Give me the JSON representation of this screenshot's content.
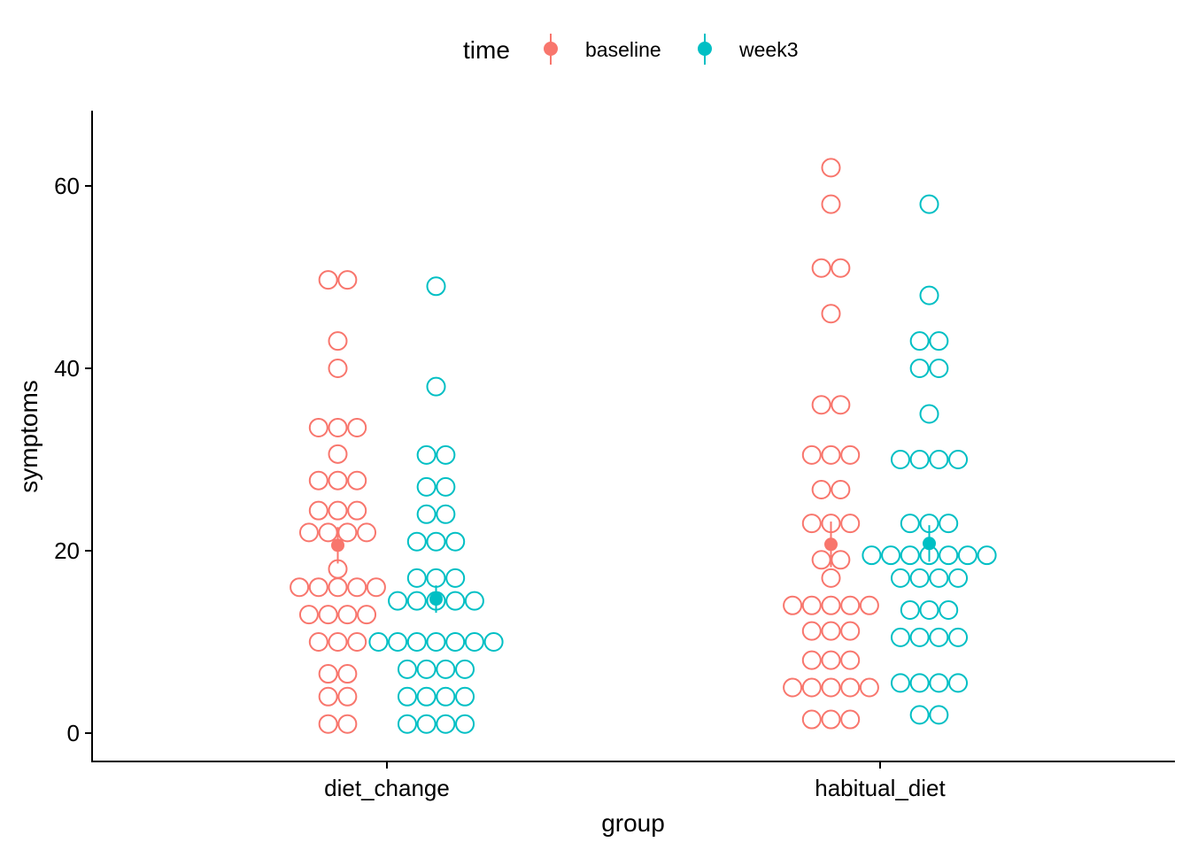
{
  "chart_data": {
    "type": "scatter",
    "subtype": "dotplot-with-mean-and-error",
    "xlabel": "group",
    "ylabel": "symptoms",
    "categories": [
      "diet_change",
      "habitual_diet"
    ],
    "yticks": [
      0,
      20,
      40,
      60
    ],
    "ylim": [
      -3,
      68
    ],
    "grid": false,
    "legend": {
      "title": "time",
      "position": "top"
    },
    "series": [
      {
        "name": "baseline",
        "color": "#F8766D",
        "groups": [
          {
            "category": "diet_change",
            "mean": 20.6,
            "err_low": 18.6,
            "err_high": 22.6,
            "bins": [
              {
                "y": 49.7,
                "count": 2
              },
              {
                "y": 43,
                "count": 1
              },
              {
                "y": 40,
                "count": 1
              },
              {
                "y": 33.5,
                "count": 3
              },
              {
                "y": 30.6,
                "count": 1
              },
              {
                "y": 27.7,
                "count": 3
              },
              {
                "y": 24.4,
                "count": 3
              },
              {
                "y": 22,
                "count": 4
              },
              {
                "y": 18,
                "count": 1
              },
              {
                "y": 16,
                "count": 5
              },
              {
                "y": 13,
                "count": 4
              },
              {
                "y": 10,
                "count": 3
              },
              {
                "y": 6.5,
                "count": 2
              },
              {
                "y": 4,
                "count": 2
              },
              {
                "y": 1,
                "count": 2
              }
            ]
          },
          {
            "category": "habitual_diet",
            "mean": 20.7,
            "err_low": 18.2,
            "err_high": 23.2,
            "bins": [
              {
                "y": 62,
                "count": 1
              },
              {
                "y": 58,
                "count": 1
              },
              {
                "y": 51,
                "count": 2
              },
              {
                "y": 46,
                "count": 1
              },
              {
                "y": 36,
                "count": 2
              },
              {
                "y": 30.5,
                "count": 3
              },
              {
                "y": 26.7,
                "count": 2
              },
              {
                "y": 23,
                "count": 3
              },
              {
                "y": 19,
                "count": 2
              },
              {
                "y": 17,
                "count": 1
              },
              {
                "y": 14,
                "count": 5
              },
              {
                "y": 11.2,
                "count": 3
              },
              {
                "y": 8,
                "count": 3
              },
              {
                "y": 5,
                "count": 5
              },
              {
                "y": 1.5,
                "count": 3
              }
            ]
          }
        ]
      },
      {
        "name": "week3",
        "color": "#00BFC4",
        "groups": [
          {
            "category": "diet_change",
            "mean": 14.7,
            "err_low": 13.2,
            "err_high": 16.2,
            "bins": [
              {
                "y": 49,
                "count": 1
              },
              {
                "y": 38,
                "count": 1
              },
              {
                "y": 30.5,
                "count": 2
              },
              {
                "y": 27,
                "count": 2
              },
              {
                "y": 24,
                "count": 2
              },
              {
                "y": 21,
                "count": 3
              },
              {
                "y": 17,
                "count": 3
              },
              {
                "y": 14.5,
                "count": 5
              },
              {
                "y": 10,
                "count": 7
              },
              {
                "y": 7,
                "count": 4
              },
              {
                "y": 4,
                "count": 4
              },
              {
                "y": 1,
                "count": 4
              }
            ]
          },
          {
            "category": "habitual_diet",
            "mean": 20.8,
            "err_low": 18.8,
            "err_high": 22.8,
            "bins": [
              {
                "y": 58,
                "count": 1
              },
              {
                "y": 48,
                "count": 1
              },
              {
                "y": 43,
                "count": 2
              },
              {
                "y": 40,
                "count": 2
              },
              {
                "y": 35,
                "count": 1
              },
              {
                "y": 30,
                "count": 4
              },
              {
                "y": 23,
                "count": 3
              },
              {
                "y": 19.5,
                "count": 7
              },
              {
                "y": 17,
                "count": 4
              },
              {
                "y": 13.5,
                "count": 3
              },
              {
                "y": 10.5,
                "count": 4
              },
              {
                "y": 5.5,
                "count": 4
              },
              {
                "y": 2,
                "count": 2
              }
            ]
          }
        ]
      }
    ]
  }
}
